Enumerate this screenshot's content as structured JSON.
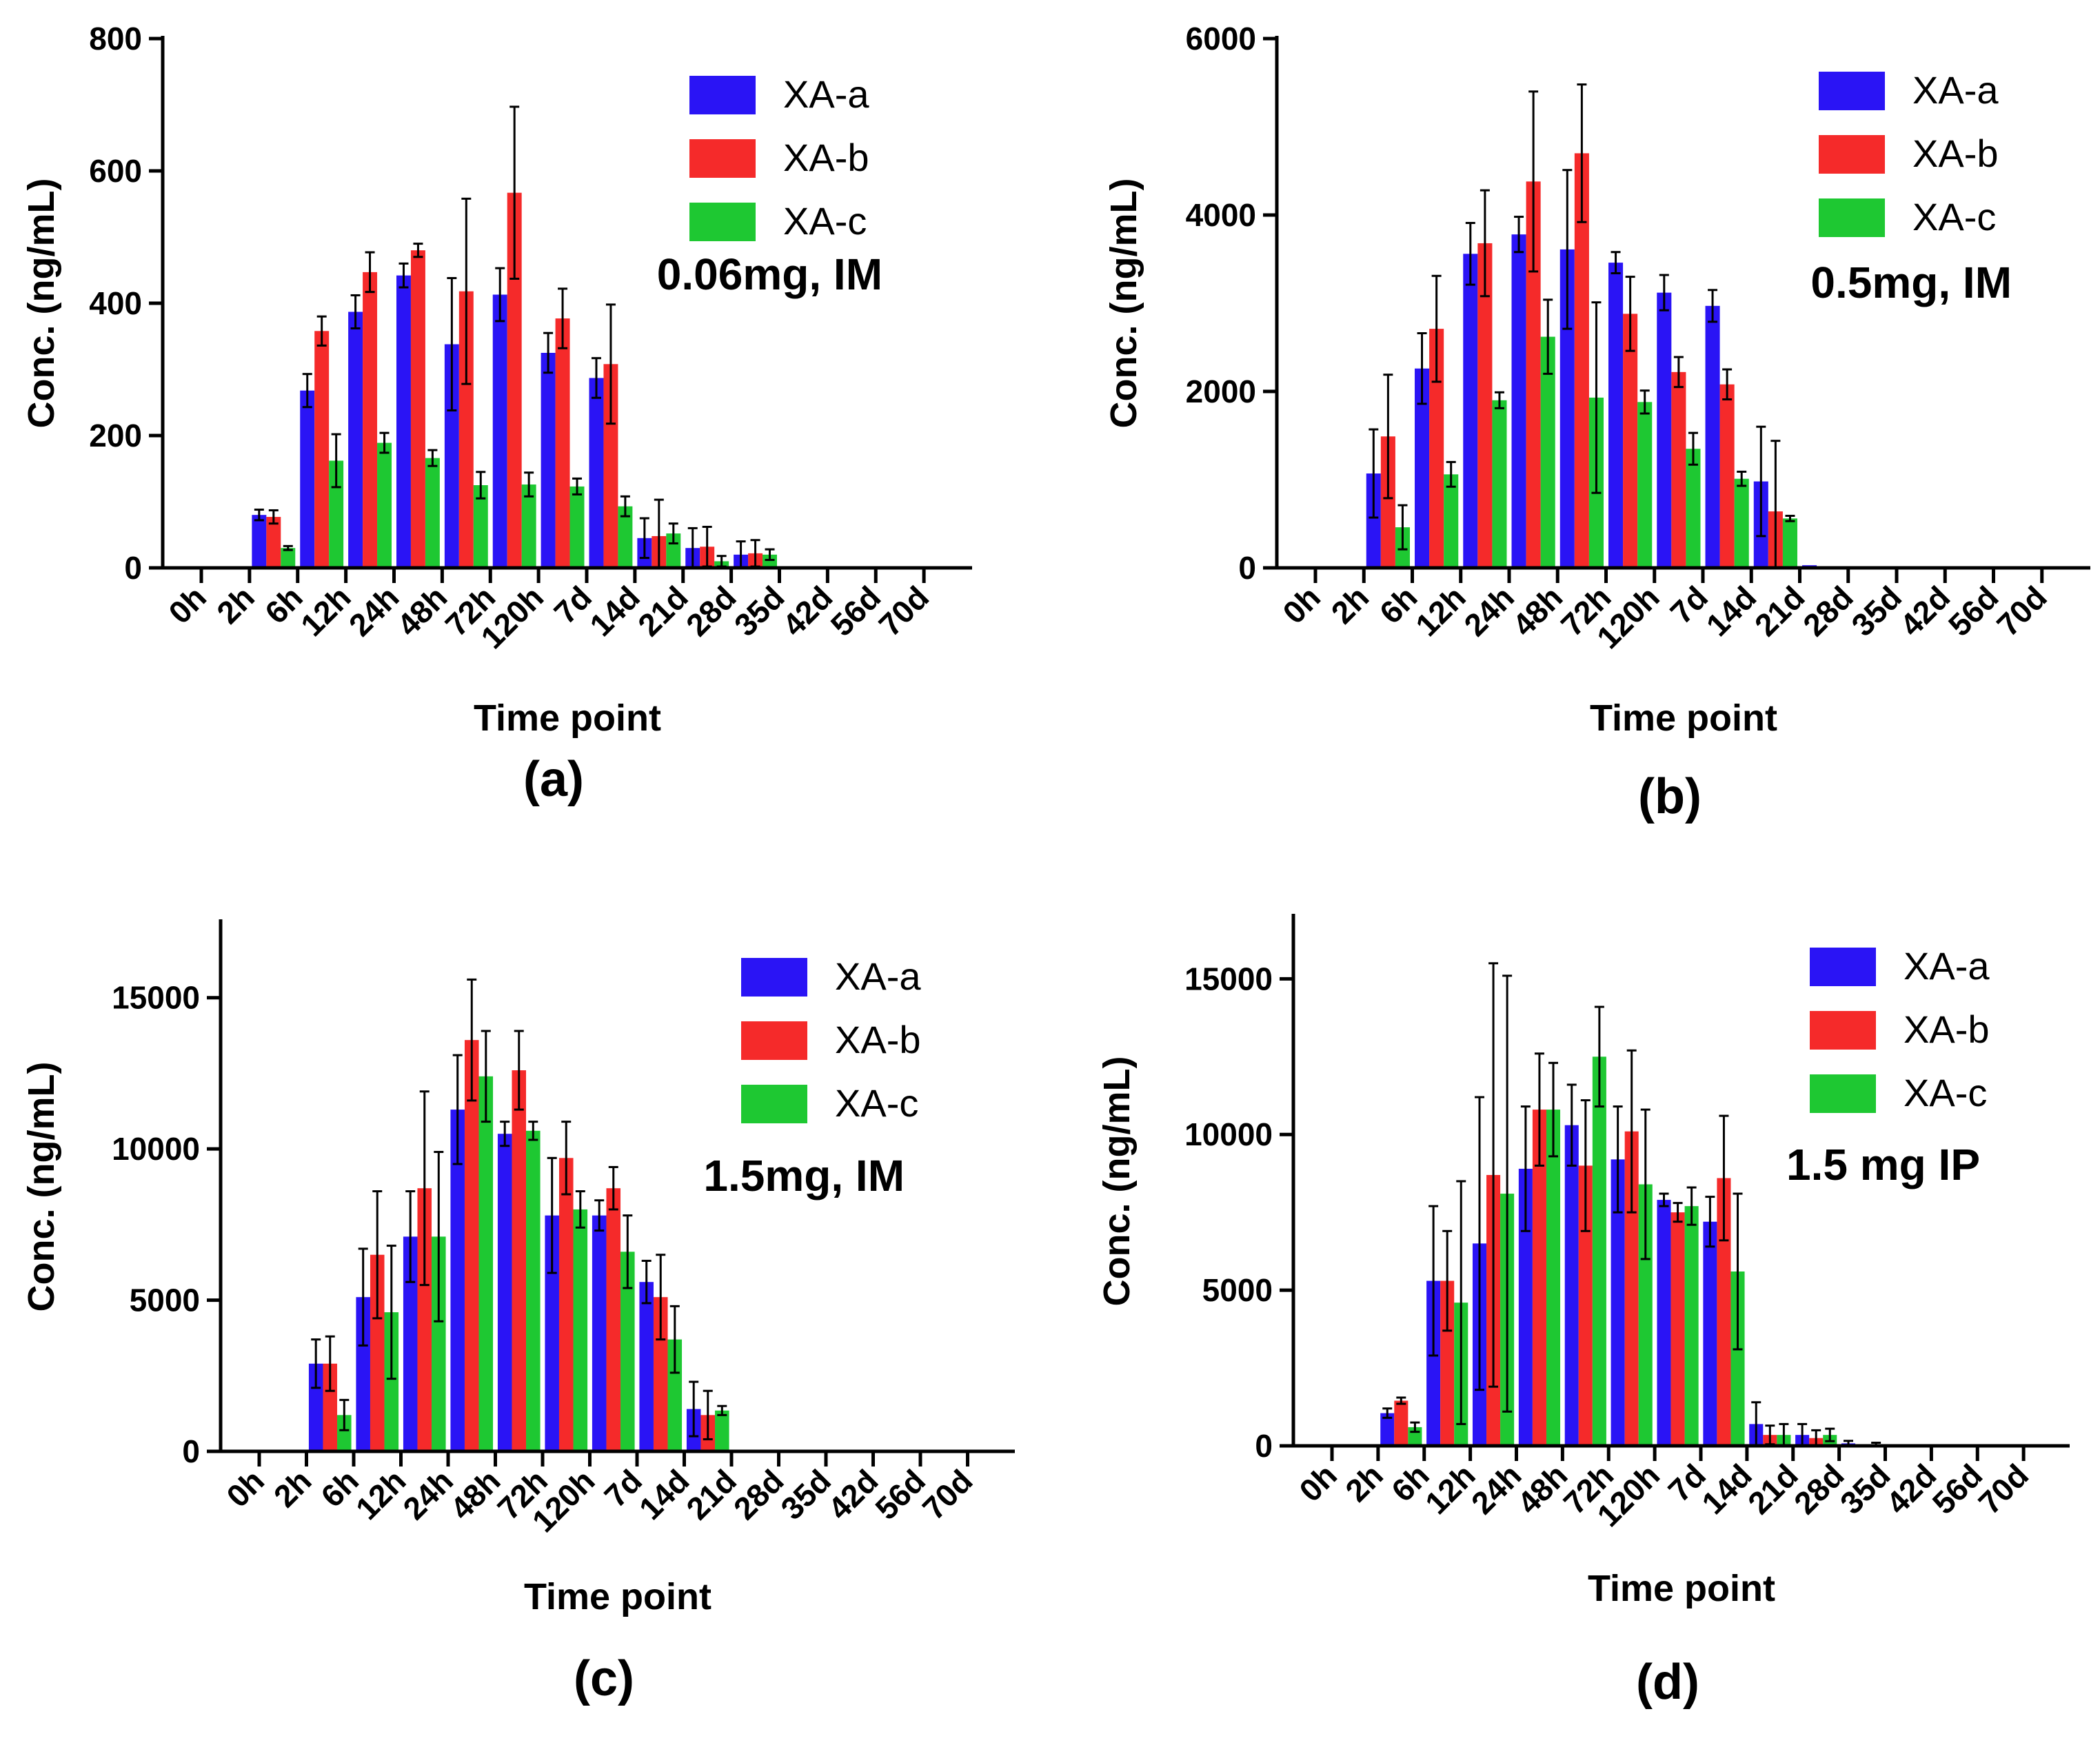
{
  "colors": {
    "XA-a": "#2a14f5",
    "XA-b": "#f52a2a",
    "XA-c": "#1ec832",
    "axis": "#000000",
    "error": "#000000"
  },
  "chart_data": [
    {
      "type": "bar",
      "panel": "(a)",
      "annotation": "0.06mg, IM",
      "xlabel": "Time point",
      "ylabel": "Conc. (ng/mL)",
      "ylim": [
        0,
        800
      ],
      "yticks": [
        "0",
        "200",
        "400",
        "600",
        "800"
      ],
      "yticks_values": [
        0,
        200,
        400,
        600,
        800
      ],
      "legend_position": "top-right",
      "categories": [
        "0h",
        "2h",
        "6h",
        "12h",
        "24h",
        "48h",
        "72h",
        "120h",
        "7d",
        "14d",
        "21d",
        "28d",
        "35d",
        "42d",
        "56d",
        "70d"
      ],
      "series": [
        {
          "name": "XA-a",
          "values": [
            0,
            80,
            268,
            387,
            442,
            338,
            413,
            325,
            287,
            45,
            30,
            20,
            0,
            0,
            0,
            0
          ],
          "errors": [
            0,
            8,
            25,
            25,
            18,
            100,
            40,
            30,
            30,
            30,
            30,
            20,
            0,
            0,
            0,
            0
          ]
        },
        {
          "name": "XA-b",
          "values": [
            0,
            77,
            358,
            447,
            480,
            418,
            567,
            377,
            308,
            48,
            32,
            22,
            0,
            0,
            0,
            0
          ],
          "errors": [
            0,
            10,
            22,
            30,
            10,
            140,
            130,
            45,
            90,
            55,
            30,
            20,
            0,
            0,
            0,
            0
          ]
        },
        {
          "name": "XA-c",
          "values": [
            0,
            30,
            162,
            189,
            166,
            125,
            126,
            123,
            93,
            52,
            10,
            20,
            0,
            0,
            0,
            0
          ],
          "errors": [
            0,
            3,
            40,
            15,
            12,
            20,
            18,
            12,
            15,
            15,
            8,
            8,
            0,
            0,
            0,
            0
          ]
        }
      ]
    },
    {
      "type": "bar",
      "panel": "(b)",
      "annotation": "0.5mg, IM",
      "xlabel": "Time point",
      "ylabel": "Conc. (ng/mL)",
      "ylim": [
        0,
        6000
      ],
      "yticks": [
        "0",
        "2000",
        "4000",
        "6000"
      ],
      "yticks_values": [
        0,
        2000,
        4000,
        6000
      ],
      "legend_position": "top-right",
      "categories": [
        "0h",
        "2h",
        "6h",
        "12h",
        "24h",
        "48h",
        "72h",
        "120h",
        "7d",
        "14d",
        "21d",
        "28d",
        "35d",
        "42d",
        "56d",
        "70d"
      ],
      "series": [
        {
          "name": "XA-a",
          "values": [
            0,
            1070,
            2260,
            3560,
            3780,
            3610,
            3460,
            3120,
            2970,
            980,
            30,
            0,
            0,
            0,
            0,
            0
          ],
          "errors": [
            0,
            500,
            400,
            350,
            200,
            900,
            120,
            200,
            180,
            620,
            0,
            0,
            0,
            0,
            0,
            0
          ]
        },
        {
          "name": "XA-b",
          "values": [
            0,
            1490,
            2710,
            3680,
            4380,
            4700,
            2880,
            2220,
            2080,
            640,
            0,
            0,
            0,
            0,
            0,
            0
          ],
          "errors": [
            0,
            700,
            600,
            600,
            1020,
            780,
            420,
            170,
            170,
            800,
            0,
            0,
            0,
            0,
            0,
            0
          ]
        },
        {
          "name": "XA-c",
          "values": [
            0,
            460,
            1060,
            1900,
            2620,
            1930,
            1880,
            1350,
            1010,
            560,
            0,
            0,
            0,
            0,
            0,
            0
          ],
          "errors": [
            0,
            250,
            140,
            90,
            420,
            1080,
            130,
            180,
            80,
            30,
            0,
            0,
            0,
            0,
            0,
            0
          ]
        }
      ]
    },
    {
      "type": "bar",
      "panel": "(c)",
      "annotation": "1.5mg, IM",
      "xlabel": "Time point",
      "ylabel": "Conc. (ng/mL)",
      "ylim": [
        0,
        17500
      ],
      "yticks": [
        "0",
        "5000",
        "10000",
        "15000"
      ],
      "yticks_values": [
        0,
        5000,
        10000,
        15000
      ],
      "legend_position": "top-right",
      "categories": [
        "0h",
        "2h",
        "6h",
        "12h",
        "24h",
        "48h",
        "72h",
        "120h",
        "7d",
        "14d",
        "21d",
        "28d",
        "35d",
        "42d",
        "56d",
        "70d"
      ],
      "series": [
        {
          "name": "XA-a",
          "values": [
            0,
            2900,
            5100,
            7100,
            11300,
            10500,
            7800,
            7800,
            5600,
            1400,
            50,
            0,
            0,
            0,
            0,
            0
          ],
          "errors": [
            0,
            800,
            1600,
            1500,
            1800,
            400,
            1900,
            500,
            700,
            900,
            0,
            0,
            0,
            0,
            0,
            0
          ]
        },
        {
          "name": "XA-b",
          "values": [
            0,
            2900,
            6500,
            8700,
            13600,
            12600,
            9700,
            8700,
            5100,
            1200,
            0,
            0,
            0,
            0,
            0,
            0
          ],
          "errors": [
            0,
            900,
            2100,
            3200,
            2000,
            1300,
            1200,
            700,
            1400,
            800,
            0,
            0,
            0,
            0,
            0,
            0
          ]
        },
        {
          "name": "XA-c",
          "values": [
            0,
            1200,
            4600,
            7100,
            12400,
            10600,
            8000,
            6600,
            3700,
            1350,
            0,
            0,
            0,
            0,
            0,
            0
          ],
          "errors": [
            0,
            500,
            2200,
            2800,
            1500,
            300,
            600,
            1200,
            1100,
            150,
            0,
            0,
            0,
            0,
            0,
            0
          ]
        }
      ]
    },
    {
      "type": "bar",
      "panel": "(d)",
      "annotation": "1.5 mg IP",
      "xlabel": "Time point",
      "ylabel": "Conc. (ng/mL)",
      "ylim": [
        0,
        17000
      ],
      "yticks": [
        "0",
        "5000",
        "10000",
        "15000"
      ],
      "yticks_values": [
        0,
        5000,
        10000,
        15000
      ],
      "legend_position": "top-right",
      "categories": [
        "0h",
        "2h",
        "6h",
        "12h",
        "24h",
        "48h",
        "72h",
        "120h",
        "7d",
        "14d",
        "21d",
        "28d",
        "35d",
        "42d",
        "56d",
        "70d"
      ],
      "series": [
        {
          "name": "XA-a",
          "values": [
            20,
            1050,
            5300,
            6500,
            8900,
            10300,
            9200,
            7900,
            7200,
            700,
            350,
            80,
            0,
            0,
            0,
            0
          ],
          "errors": [
            0,
            150,
            2400,
            4700,
            2000,
            1300,
            1700,
            200,
            800,
            700,
            350,
            80,
            0,
            0,
            0,
            0
          ]
        },
        {
          "name": "XA-b",
          "values": [
            0,
            1450,
            5300,
            8700,
            10800,
            9000,
            10100,
            7500,
            8600,
            350,
            250,
            0,
            0,
            0,
            0,
            0
          ],
          "errors": [
            0,
            100,
            1600,
            6800,
            1800,
            2100,
            2600,
            300,
            2000,
            300,
            250,
            0,
            0,
            0,
            0,
            0
          ]
        },
        {
          "name": "XA-c",
          "values": [
            0,
            600,
            4600,
            8100,
            10800,
            12500,
            8400,
            7700,
            5600,
            350,
            350,
            50,
            0,
            0,
            0,
            0
          ],
          "errors": [
            0,
            150,
            3900,
            7000,
            1500,
            1600,
            2400,
            600,
            2500,
            350,
            200,
            50,
            0,
            0,
            0,
            0
          ]
        }
      ]
    }
  ]
}
